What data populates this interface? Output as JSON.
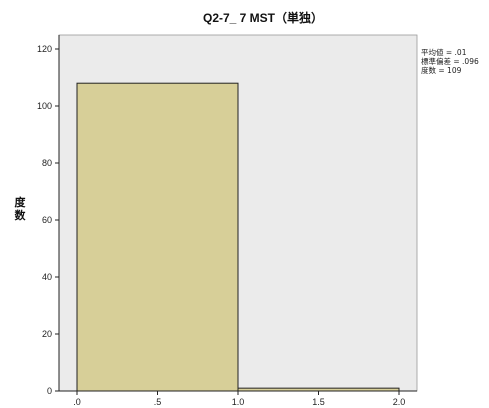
{
  "chart_data": {
    "type": "bar",
    "title": "Q2-7_ 7 MST（単独）",
    "xlabel": "",
    "ylabel": "度数",
    "xlim": [
      0,
      2.0
    ],
    "ylim": [
      0,
      120
    ],
    "x_ticks": [
      ".0",
      ".5",
      "1.0",
      "1.5",
      "2.0"
    ],
    "y_ticks": [
      "0",
      "20",
      "40",
      "60",
      "80",
      "100",
      "120"
    ],
    "bins": [
      {
        "start": 0.0,
        "end": 1.0,
        "value": 108
      },
      {
        "start": 1.0,
        "end": 2.0,
        "value": 1
      }
    ],
    "stats": [
      "平均値 = .01",
      "標準偏差 = .096",
      "度数 = 109"
    ],
    "grid": false,
    "legend": "none",
    "colors": {
      "plot_bg": "#ebebeb",
      "bar_fill": "#d7cf98",
      "bar_stroke": "#222222",
      "axis": "#222222"
    }
  }
}
